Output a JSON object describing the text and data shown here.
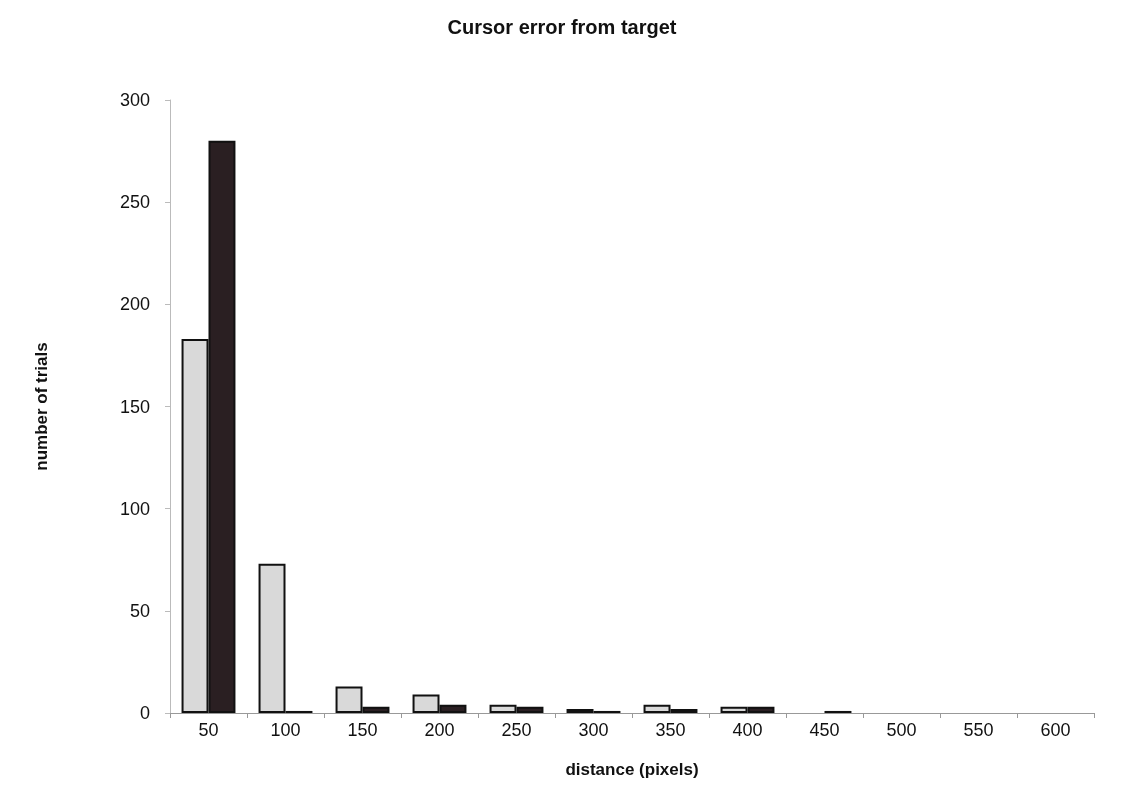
{
  "chart_data": {
    "type": "bar",
    "title": "Cursor error from target",
    "xlabel": "distance (pixels)",
    "ylabel": "number of trials",
    "categories": [
      "50",
      "100",
      "150",
      "200",
      "250",
      "300",
      "350",
      "400",
      "450",
      "500",
      "550",
      "600"
    ],
    "series": [
      {
        "color": "#d9d9d9",
        "values": [
          183,
          73,
          13,
          9,
          4,
          2,
          4,
          3,
          0,
          0,
          0,
          0
        ]
      },
      {
        "color": "#2a1f22",
        "values": [
          280,
          1,
          3,
          4,
          3,
          1,
          2,
          3,
          1,
          0,
          0,
          0
        ]
      }
    ],
    "ylim": [
      0,
      300
    ],
    "yticks": [
      0,
      50,
      100,
      150,
      200,
      250,
      300
    ],
    "grid": false
  }
}
